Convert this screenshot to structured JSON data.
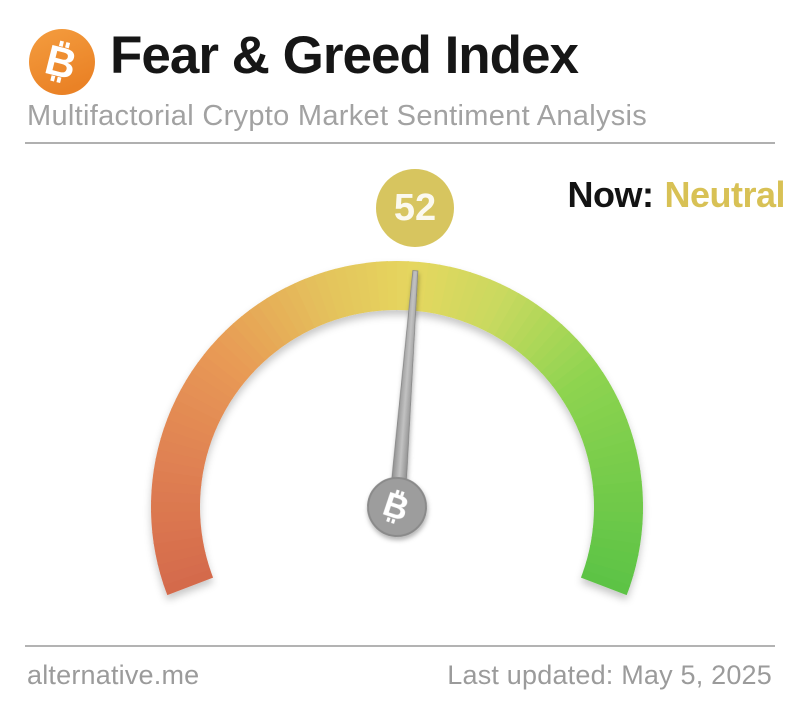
{
  "header": {
    "title": "Fear & Greed Index",
    "subtitle": "Multifactorial Crypto Market Sentiment Analysis",
    "logo_color_top": "#f49d3f",
    "logo_color_bottom": "#ea8226"
  },
  "status": {
    "now_label": "Now:",
    "classification": "Neutral",
    "classification_color": "#d8c155"
  },
  "chart_data": {
    "type": "gauge",
    "title": "Fear & Greed Index",
    "value": 52,
    "min": 0,
    "max": 100,
    "classification": "Neutral",
    "arc_span_degrees": 222,
    "badge_color": "#d7c55f",
    "badge_value_color": "#fbf9ee",
    "needle_color": "#a0a0a0",
    "hub_color": "#9d9d9d",
    "color_stops": [
      {
        "t": 0.0,
        "color": "#d4694c"
      },
      {
        "t": 0.14,
        "color": "#df8052"
      },
      {
        "t": 0.28,
        "color": "#e89a55"
      },
      {
        "t": 0.42,
        "color": "#e4c35c"
      },
      {
        "t": 0.52,
        "color": "#e5d75e"
      },
      {
        "t": 0.62,
        "color": "#c9d95f"
      },
      {
        "t": 0.75,
        "color": "#8ed450"
      },
      {
        "t": 1.0,
        "color": "#5cc345"
      }
    ]
  },
  "footer": {
    "site": "alternative.me",
    "last_updated": "Last updated: May 5, 2025"
  }
}
